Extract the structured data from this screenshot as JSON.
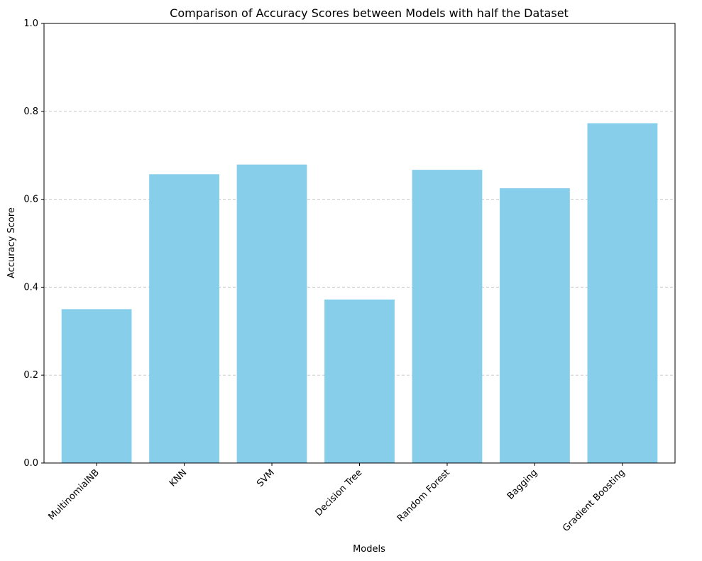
{
  "chart_data": {
    "type": "bar",
    "title": "Comparison of Accuracy Scores between Models with half the Dataset",
    "xlabel": "Models",
    "ylabel": "Accuracy Score",
    "categories": [
      "MultinomialNB",
      "KNN",
      "SVM",
      "Decision Tree",
      "Random Forest",
      "Bagging",
      "Gradient Boosting"
    ],
    "values": [
      0.35,
      0.657,
      0.679,
      0.372,
      0.667,
      0.625,
      0.773
    ],
    "ylim": [
      0,
      1.0
    ],
    "yticks": [
      "0.0",
      "0.2",
      "0.4",
      "0.6",
      "0.8",
      "1.0"
    ],
    "grid": "y-axis dashed",
    "bar_color": "#87CEEB",
    "grid_color": "#c8c8c8",
    "xtick_rotation_deg": 45
  }
}
